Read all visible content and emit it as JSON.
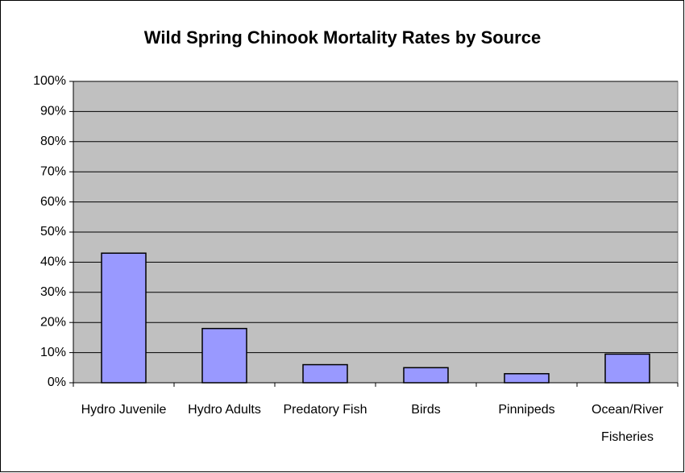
{
  "chart_data": {
    "type": "bar",
    "title": "Wild Spring Chinook Mortality Rates by Source",
    "categories": [
      "Hydro Juvenile",
      "Hydro Adults",
      "Predatory Fish",
      "Birds",
      "Pinnipeds",
      "Ocean/River Fisheries"
    ],
    "values": [
      43,
      18,
      6,
      5,
      3,
      9.5
    ],
    "color": "#9999ff",
    "ylim": [
      0,
      100
    ],
    "yticks": [
      {
        "value": 0,
        "label": "0%"
      },
      {
        "value": 10,
        "label": "10%"
      },
      {
        "value": 20,
        "label": "20%"
      },
      {
        "value": 30,
        "label": "30%"
      },
      {
        "value": 40,
        "label": "40%"
      },
      {
        "value": 50,
        "label": "50%"
      },
      {
        "value": 60,
        "label": "60%"
      },
      {
        "value": 70,
        "label": "70%"
      },
      {
        "value": 80,
        "label": "80%"
      },
      {
        "value": 90,
        "label": "90%"
      },
      {
        "value": 100,
        "label": "100%"
      }
    ],
    "grid": true
  }
}
